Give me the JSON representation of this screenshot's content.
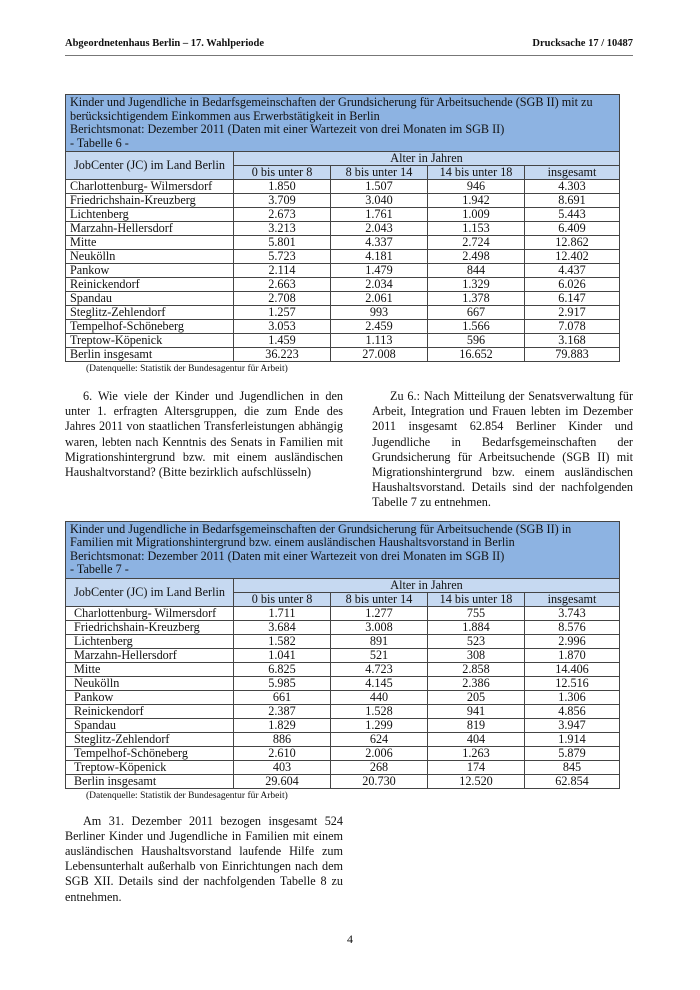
{
  "header": {
    "left": "Abgeordnetenhaus Berlin  – 17. Wahlperiode",
    "right": "Drucksache 17 / 10487"
  },
  "table6": {
    "title": [
      "Kinder und Jugendliche in Bedarfsgemeinschaften der Grundsicherung für Arbeitsuchende (SGB II) mit zu berücksichtigendem Einkommen aus Erwerbstätigkeit in Berlin",
      "Berichtsmonat: Dezember 2011 (Daten mit einer Wartezeit von drei Monaten im SGB II)",
      "- Tabelle 6 -"
    ],
    "col_header": "JobCenter (JC) im Land Berlin",
    "group_header": "Alter in Jahren",
    "columns": [
      "0 bis unter 8",
      "8 bis unter 14",
      "14 bis unter 18",
      "insgesamt"
    ],
    "rows": [
      [
        "Charlottenburg- Wilmersdorf",
        "1.850",
        "1.507",
        "946",
        "4.303"
      ],
      [
        "Friedrichshain-Kreuzberg",
        "3.709",
        "3.040",
        "1.942",
        "8.691"
      ],
      [
        "Lichtenberg",
        "2.673",
        "1.761",
        "1.009",
        "5.443"
      ],
      [
        "Marzahn-Hellersdorf",
        "3.213",
        "2.043",
        "1.153",
        "6.409"
      ],
      [
        "Mitte",
        "5.801",
        "4.337",
        "2.724",
        "12.862"
      ],
      [
        "Neukölln",
        "5.723",
        "4.181",
        "2.498",
        "12.402"
      ],
      [
        "Pankow",
        "2.114",
        "1.479",
        "844",
        "4.437"
      ],
      [
        "Reinickendorf",
        "2.663",
        "2.034",
        "1.329",
        "6.026"
      ],
      [
        "Spandau",
        "2.708",
        "2.061",
        "1.378",
        "6.147"
      ],
      [
        "Steglitz-Zehlendorf",
        "1.257",
        "993",
        "667",
        "2.917"
      ],
      [
        "Tempelhof-Schöneberg",
        "3.053",
        "2.459",
        "1.566",
        "7.078"
      ],
      [
        "Treptow-Köpenick",
        "1.459",
        "1.113",
        "596",
        "3.168"
      ],
      [
        "Berlin insgesamt",
        "36.223",
        "27.008",
        "16.652",
        "79.883"
      ]
    ],
    "source": "(Datenquelle: Statistik der Bundesagentur für Arbeit)"
  },
  "question": "6. Wie viele der Kinder und Jugendlichen in den unter 1. erfragten Altersgruppen, die zum Ende des Jahres 2011 von staatlichen Transferleistungen abhängig waren, lebten nach Kenntnis des Senats in Familien mit Migrationshintergrund bzw. mit einem ausländischen Haushaltvorstand? (Bitte bezirklich aufschlüsseln)",
  "answer": "Zu 6.: Nach Mitteilung der Senatsverwaltung für Arbeit, Integration und Frauen lebten im Dezember 2011 insgesamt 62.854 Berliner Kinder und Jugendliche in Bedarfsgemeinschaften der Grundsicherung für Arbeitsuchende (SGB II) mit Migrationshintergrund bzw. einem ausländischen Haushaltsvorstand. Details sind der nachfolgenden Tabelle 7 zu entnehmen.",
  "table7": {
    "title": [
      "Kinder und Jugendliche in Bedarfsgemeinschaften der Grundsicherung für Arbeitsuchende (SGB II) in Familien mit Migrationshintergrund bzw. einem ausländischen Haushaltsvorstand in Berlin",
      "Berichtsmonat: Dezember 2011 (Daten mit einer Wartezeit von drei Monaten im SGB II)",
      "- Tabelle 7 -"
    ],
    "col_header": "JobCenter (JC) im Land Berlin",
    "group_header": "Alter in Jahren",
    "columns": [
      "0 bis unter 8",
      "8 bis unter 14",
      "14 bis unter 18",
      "insgesamt"
    ],
    "rows": [
      [
        "Charlottenburg- Wilmersdorf",
        "1.711",
        "1.277",
        "755",
        "3.743"
      ],
      [
        "Friedrichshain-Kreuzberg",
        "3.684",
        "3.008",
        "1.884",
        "8.576"
      ],
      [
        "Lichtenberg",
        "1.582",
        "891",
        "523",
        "2.996"
      ],
      [
        "Marzahn-Hellersdorf",
        "1.041",
        "521",
        "308",
        "1.870"
      ],
      [
        "Mitte",
        "6.825",
        "4.723",
        "2.858",
        "14.406"
      ],
      [
        "Neukölln",
        "5.985",
        "4.145",
        "2.386",
        "12.516"
      ],
      [
        "Pankow",
        "661",
        "440",
        "205",
        "1.306"
      ],
      [
        "Reinickendorf",
        "2.387",
        "1.528",
        "941",
        "4.856"
      ],
      [
        "Spandau",
        "1.829",
        "1.299",
        "819",
        "3.947"
      ],
      [
        "Steglitz-Zehlendorf",
        "886",
        "624",
        "404",
        "1.914"
      ],
      [
        "Tempelhof-Schöneberg",
        "2.610",
        "2.006",
        "1.263",
        "5.879"
      ],
      [
        "Treptow-Köpenick",
        "403",
        "268",
        "174",
        "845"
      ],
      [
        "Berlin insgesamt",
        "29.604",
        "20.730",
        "12.520",
        "62.854"
      ]
    ],
    "source": "(Datenquelle: Statistik der Bundesagentur für Arbeit)"
  },
  "closing": "Am 31. Dezember 2011 bezogen insgesamt 524 Berliner Kinder und Jugendliche in Familien mit einem ausländischen Haushaltsvorstand laufende Hilfe zum Lebensunterhalt außerhalb von Einrichtungen nach dem SGB XII. Details sind der nachfolgenden Tabelle 8 zu entnehmen.",
  "page_number": "4",
  "colors": {
    "title_bg": "#8db3e2",
    "header_bg": "#c6d9f1"
  }
}
